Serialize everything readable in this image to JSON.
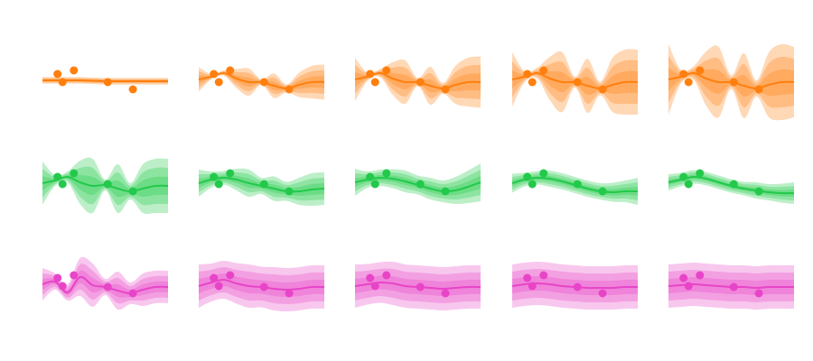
{
  "chart_data": [
    {
      "type": "line",
      "color": "#ff7f0e",
      "xlim": [
        0,
        10
      ],
      "ylim": [
        -5,
        5
      ],
      "x": [
        0,
        1,
        2,
        3,
        4,
        5,
        6,
        7,
        8,
        9,
        10
      ],
      "values": [
        0.1,
        0.1,
        0.1,
        0.1,
        0.05,
        0,
        0,
        0,
        0,
        0,
        0
      ],
      "std": [
        0.12,
        0.12,
        0.12,
        0.12,
        0.12,
        0.12,
        0.12,
        0.12,
        0.12,
        0.12,
        0.12
      ],
      "points": {
        "x": [
          1.2,
          1.6,
          2.5,
          5.2,
          7.2
        ],
        "y": [
          0.8,
          -0.1,
          1.2,
          -0.1,
          -0.9
        ]
      }
    },
    {
      "type": "line",
      "color": "#ff7f0e",
      "xlim": [
        0,
        10
      ],
      "ylim": [
        -5,
        5
      ],
      "x": [
        0,
        1,
        2,
        3,
        4,
        5,
        6,
        7,
        8,
        9,
        10
      ],
      "values": [
        0.2,
        0.5,
        0.9,
        0.3,
        -0.1,
        -0.1,
        -0.5,
        -0.8,
        -0.4,
        -0.1,
        -0.1
      ],
      "std": [
        0.45,
        0.1,
        0.1,
        0.35,
        0.5,
        0.1,
        0.45,
        0.15,
        0.45,
        0.6,
        0.65
      ],
      "points": {
        "x": [
          1.2,
          1.6,
          2.5,
          5.2,
          7.2
        ],
        "y": [
          0.8,
          -0.1,
          1.2,
          -0.1,
          -0.9
        ]
      }
    },
    {
      "type": "line",
      "color": "#ff7f0e",
      "xlim": [
        0,
        10
      ],
      "ylim": [
        -5,
        5
      ],
      "x": [
        0,
        1,
        2,
        3,
        4,
        5,
        6,
        7,
        8,
        9,
        10
      ],
      "values": [
        0.2,
        0.5,
        0.9,
        0.3,
        -0.1,
        -0.1,
        -0.5,
        -0.8,
        -0.4,
        -0.1,
        -0.1
      ],
      "std": [
        0.8,
        0.15,
        0.15,
        0.6,
        0.8,
        0.15,
        0.7,
        0.2,
        0.7,
        0.9,
        0.95
      ],
      "points": {
        "x": [
          1.2,
          1.6,
          2.5,
          5.2,
          7.2
        ],
        "y": [
          0.8,
          -0.1,
          1.2,
          -0.1,
          -0.9
        ]
      }
    },
    {
      "type": "line",
      "color": "#ff7f0e",
      "xlim": [
        0,
        10
      ],
      "ylim": [
        -5,
        5
      ],
      "x": [
        0,
        1,
        2,
        3,
        4,
        5,
        6,
        7,
        8,
        9,
        10
      ],
      "values": [
        0.2,
        0.5,
        0.9,
        0.3,
        -0.1,
        -0.1,
        -0.5,
        -0.8,
        -0.4,
        -0.1,
        -0.1
      ],
      "std": [
        1.0,
        0.2,
        0.2,
        0.8,
        1.1,
        0.2,
        1.0,
        0.25,
        1.0,
        1.2,
        1.2
      ],
      "points": {
        "x": [
          1.2,
          1.6,
          2.5,
          5.2,
          7.2
        ],
        "y": [
          0.8,
          -0.1,
          1.2,
          -0.1,
          -0.9
        ]
      }
    },
    {
      "type": "line",
      "color": "#ff7f0e",
      "xlim": [
        0,
        10
      ],
      "ylim": [
        -5,
        5
      ],
      "x": [
        0,
        1,
        2,
        3,
        4,
        5,
        6,
        7,
        8,
        9,
        10
      ],
      "values": [
        0.2,
        0.5,
        0.9,
        0.3,
        -0.1,
        -0.1,
        -0.5,
        -0.8,
        -0.4,
        -0.1,
        -0.1
      ],
      "std": [
        1.3,
        0.25,
        0.25,
        1.0,
        1.3,
        0.25,
        1.2,
        0.3,
        1.2,
        1.4,
        1.3
      ],
      "points": {
        "x": [
          1.2,
          1.6,
          2.5,
          5.2,
          7.2
        ],
        "y": [
          0.8,
          -0.1,
          1.2,
          -0.1,
          -0.9
        ]
      }
    },
    {
      "type": "line",
      "color": "#22c94a",
      "xlim": [
        0,
        10
      ],
      "ylim": [
        -5,
        5
      ],
      "x": [
        0,
        1,
        2,
        3,
        4,
        5,
        6,
        7,
        8,
        9,
        10
      ],
      "values": [
        0.2,
        0.5,
        0.9,
        0.3,
        -0.1,
        0,
        -0.4,
        -0.7,
        -0.4,
        -0.1,
        -0.1
      ],
      "std": [
        0.8,
        0.2,
        0.2,
        0.8,
        1.0,
        0.2,
        0.9,
        0.3,
        0.9,
        1.0,
        1.0
      ],
      "points": {
        "x": [
          1.2,
          1.6,
          2.5,
          5.2,
          7.2
        ],
        "y": [
          0.9,
          0.1,
          1.3,
          0.1,
          -0.7
        ]
      }
    },
    {
      "type": "line",
      "color": "#22c94a",
      "xlim": [
        0,
        10
      ],
      "ylim": [
        -5,
        5
      ],
      "x": [
        0,
        1,
        2,
        3,
        4,
        5,
        6,
        7,
        8,
        9,
        10
      ],
      "values": [
        0.2,
        0.6,
        0.8,
        0.6,
        0.2,
        -0.1,
        -0.4,
        -0.7,
        -0.7,
        -0.5,
        -0.4
      ],
      "std": [
        0.5,
        0.3,
        0.25,
        0.4,
        0.5,
        0.3,
        0.45,
        0.35,
        0.5,
        0.6,
        0.6
      ],
      "points": {
        "x": [
          1.2,
          1.6,
          2.5,
          5.2,
          7.2
        ],
        "y": [
          0.9,
          0.1,
          1.3,
          0.1,
          -0.7
        ]
      }
    },
    {
      "type": "line",
      "color": "#22c94a",
      "xlim": [
        0,
        10
      ],
      "ylim": [
        -5,
        5
      ],
      "x": [
        0,
        1,
        2,
        3,
        4,
        5,
        6,
        7,
        8,
        9,
        10
      ],
      "values": [
        0.3,
        0.6,
        0.8,
        0.7,
        0.4,
        0,
        -0.4,
        -0.7,
        -0.6,
        -0.2,
        0.3
      ],
      "std": [
        0.5,
        0.3,
        0.3,
        0.35,
        0.4,
        0.35,
        0.4,
        0.4,
        0.5,
        0.6,
        0.7
      ],
      "points": {
        "x": [
          1.2,
          1.6,
          2.5,
          5.2,
          7.2
        ],
        "y": [
          0.9,
          0.1,
          1.3,
          0.1,
          -0.7
        ]
      }
    },
    {
      "type": "line",
      "color": "#22c94a",
      "xlim": [
        0,
        10
      ],
      "ylim": [
        -5,
        5
      ],
      "x": [
        0,
        1,
        2,
        3,
        4,
        5,
        6,
        7,
        8,
        9,
        10
      ],
      "values": [
        0.2,
        0.6,
        0.8,
        0.7,
        0.4,
        0,
        -0.4,
        -0.7,
        -0.8,
        -0.7,
        -0.7
      ],
      "std": [
        0.35,
        0.25,
        0.25,
        0.3,
        0.3,
        0.3,
        0.3,
        0.3,
        0.35,
        0.4,
        0.5
      ],
      "points": {
        "x": [
          1.2,
          1.6,
          2.5,
          5.2,
          7.2
        ],
        "y": [
          0.9,
          0.1,
          1.3,
          0.1,
          -0.7
        ]
      }
    },
    {
      "type": "line",
      "color": "#22c94a",
      "xlim": [
        0,
        10
      ],
      "ylim": [
        -5,
        5
      ],
      "x": [
        0,
        1,
        2,
        3,
        4,
        5,
        6,
        7,
        8,
        9,
        10
      ],
      "values": [
        0.3,
        0.6,
        0.9,
        0.7,
        0.3,
        -0.1,
        -0.4,
        -0.6,
        -0.8,
        -0.9,
        -0.9
      ],
      "std": [
        0.3,
        0.25,
        0.25,
        0.25,
        0.25,
        0.25,
        0.25,
        0.3,
        0.3,
        0.35,
        0.4
      ],
      "points": {
        "x": [
          1.2,
          1.6,
          2.5,
          5.2,
          7.2
        ],
        "y": [
          0.9,
          0.1,
          1.3,
          0.1,
          -0.7
        ]
      }
    },
    {
      "type": "line",
      "color": "#e844c8",
      "xlim": [
        0,
        10
      ],
      "ylim": [
        -5,
        5
      ],
      "x": [
        0,
        1,
        2,
        3,
        4,
        5,
        6,
        7,
        8,
        9,
        10
      ],
      "values": [
        0.3,
        0.6,
        -0.6,
        1.1,
        0.2,
        0,
        -0.4,
        -0.7,
        -0.3,
        0,
        0
      ],
      "std": [
        0.6,
        0.3,
        0.3,
        0.7,
        0.8,
        0.3,
        0.7,
        0.4,
        0.6,
        0.6,
        0.6
      ],
      "points": {
        "x": [
          1.2,
          1.6,
          2.5,
          5.2,
          7.2
        ],
        "y": [
          1.0,
          0.1,
          1.3,
          0,
          -0.7
        ]
      }
    },
    {
      "type": "line",
      "color": "#e844c8",
      "xlim": [
        0,
        10
      ],
      "ylim": [
        -5,
        5
      ],
      "x": [
        0,
        1,
        2,
        3,
        4,
        5,
        6,
        7,
        8,
        9,
        10
      ],
      "values": [
        0.1,
        0.5,
        0.8,
        0.4,
        0.1,
        0,
        -0.2,
        -0.3,
        -0.2,
        0,
        0
      ],
      "std": [
        0.8,
        0.7,
        0.7,
        0.75,
        0.8,
        0.75,
        0.8,
        0.8,
        0.8,
        0.8,
        0.8
      ],
      "points": {
        "x": [
          1.2,
          1.6,
          2.5,
          5.2,
          7.2
        ],
        "y": [
          1.0,
          0.1,
          1.3,
          0,
          -0.7
        ]
      }
    },
    {
      "type": "line",
      "color": "#e844c8",
      "xlim": [
        0,
        10
      ],
      "ylim": [
        -5,
        5
      ],
      "x": [
        0,
        1,
        2,
        3,
        4,
        5,
        6,
        7,
        8,
        9,
        10
      ],
      "values": [
        0.1,
        0.3,
        0.5,
        0.4,
        0.1,
        0,
        -0.1,
        -0.2,
        -0.1,
        0,
        0
      ],
      "std": [
        0.8,
        0.75,
        0.75,
        0.8,
        0.8,
        0.8,
        0.8,
        0.8,
        0.8,
        0.8,
        0.8
      ],
      "points": {
        "x": [
          1.2,
          1.6,
          2.5,
          5.2,
          7.2
        ],
        "y": [
          1.0,
          0.1,
          1.3,
          0,
          -0.7
        ]
      }
    },
    {
      "type": "line",
      "color": "#e844c8",
      "xlim": [
        0,
        10
      ],
      "ylim": [
        -5,
        5
      ],
      "x": [
        0,
        1,
        2,
        3,
        4,
        5,
        6,
        7,
        8,
        9,
        10
      ],
      "values": [
        0.1,
        0.3,
        0.4,
        0.3,
        0.1,
        0,
        -0.1,
        -0.1,
        -0.1,
        0,
        0
      ],
      "std": [
        0.8,
        0.8,
        0.8,
        0.8,
        0.8,
        0.8,
        0.8,
        0.8,
        0.8,
        0.8,
        0.8
      ],
      "points": {
        "x": [
          1.2,
          1.6,
          2.5,
          5.2,
          7.2
        ],
        "y": [
          1.0,
          0.1,
          1.3,
          0,
          -0.7
        ]
      }
    },
    {
      "type": "line",
      "color": "#e844c8",
      "xlim": [
        0,
        10
      ],
      "ylim": [
        -5,
        5
      ],
      "x": [
        0,
        1,
        2,
        3,
        4,
        5,
        6,
        7,
        8,
        9,
        10
      ],
      "values": [
        0.1,
        0.2,
        0.3,
        0.2,
        0.1,
        0,
        0,
        -0.1,
        0,
        0,
        0
      ],
      "std": [
        0.8,
        0.8,
        0.8,
        0.8,
        0.8,
        0.8,
        0.8,
        0.8,
        0.8,
        0.8,
        0.8
      ],
      "points": {
        "x": [
          1.2,
          1.6,
          2.5,
          5.2,
          7.2
        ],
        "y": [
          1.0,
          0.1,
          1.3,
          0,
          -0.7
        ]
      }
    }
  ]
}
